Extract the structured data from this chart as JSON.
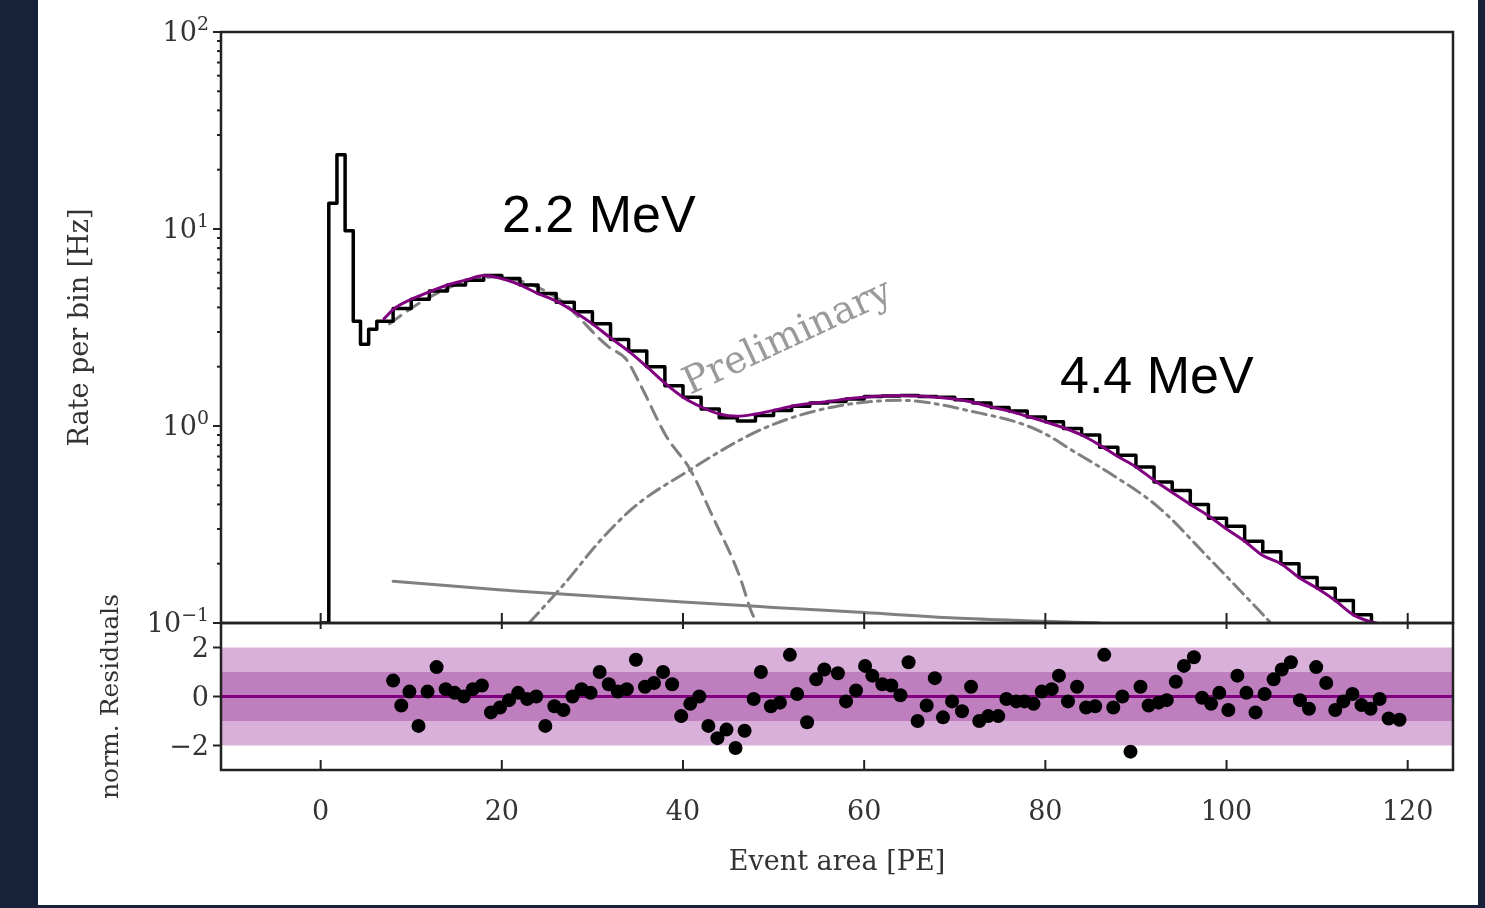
{
  "chart_data": [
    {
      "type": "line",
      "ylabel": "Rate per bin [Hz]",
      "log": "y",
      "xlim": [
        -11,
        125
      ],
      "ylim": [
        0.1,
        100
      ],
      "xticks": [
        0,
        20,
        40,
        60,
        80,
        100,
        120
      ],
      "yticks": [
        {
          "value": 0.1,
          "label": "10$^{−1}$"
        },
        {
          "value": 0.2,
          "label": null
        },
        {
          "value": 0.3,
          "label": null
        },
        {
          "value": 0.4,
          "label": null
        },
        {
          "value": 0.5,
          "label": null
        },
        {
          "value": 0.6,
          "label": null
        },
        {
          "value": 0.7,
          "label": null
        },
        {
          "value": 0.8,
          "label": null
        },
        {
          "value": 0.9,
          "label": null
        },
        {
          "value": 1,
          "label": "10$^{0}$"
        },
        {
          "value": 2,
          "label": null
        },
        {
          "value": 3,
          "label": null
        },
        {
          "value": 4,
          "label": null
        },
        {
          "value": 5,
          "label": null
        },
        {
          "value": 6,
          "label": null
        },
        {
          "value": 7,
          "label": null
        },
        {
          "value": 8,
          "label": null
        },
        {
          "value": 9,
          "label": null
        },
        {
          "value": 10,
          "label": "10$^{1}$"
        },
        {
          "value": 20,
          "label": null
        },
        {
          "value": 30,
          "label": null
        },
        {
          "value": 40,
          "label": null
        },
        {
          "value": 50,
          "label": null
        },
        {
          "value": 60,
          "label": null
        },
        {
          "value": 70,
          "label": null
        },
        {
          "value": 80,
          "label": null
        },
        {
          "value": 90,
          "label": null
        },
        {
          "value": 100,
          "label": "10$^{2}$"
        }
      ],
      "tick_labels": "y",
      "annotations": [
        "2.2 MeV",
        "4.4 MeV",
        "Preliminary"
      ],
      "series": [
        {
          "color": "#808080",
          "x": [
            8,
            20,
            30,
            40,
            50,
            60,
            70,
            80,
            86
          ],
          "values": [
            0.163,
            0.147,
            0.137,
            0.128,
            0.12,
            0.113,
            0.106,
            0.102,
            0.1
          ]
        },
        {
          "color": "#808080",
          "line_style": "dashed",
          "x": [
            7.6,
            12,
            19,
            26,
            31.9,
            33.8,
            35.2,
            38.2,
            40.8,
            43.3,
            46.3,
            47.7,
            48.2
          ],
          "values": [
            3.3,
            4.5,
            5.7,
            4.5,
            2.5,
            2.16,
            1.65,
            0.88,
            0.6,
            0.345,
            0.17,
            0.11,
            0.1
          ]
        },
        {
          "color": "#808080",
          "line_style": "dashdot",
          "x": [
            23,
            27,
            30.8,
            33.8,
            40.8,
            49.3,
            56.6,
            64,
            71.4,
            80.6,
            82.4,
            87,
            92.4,
            98.2,
            104.9
          ],
          "values": [
            0.1,
            0.16,
            0.26,
            0.36,
            0.6,
            0.99,
            1.25,
            1.35,
            1.2,
            0.88,
            0.78,
            0.58,
            0.39,
            0.21,
            0.1
          ]
        },
        {
          "type": "step",
          "color": "#000000",
          "x": [
            0,
            0.9,
            1.8,
            2.7,
            3.6,
            4.4,
            5.3,
            6.2,
            8,
            10,
            12,
            14,
            16,
            18,
            20,
            22,
            24,
            26,
            28,
            30,
            32,
            34,
            36,
            38,
            40,
            42,
            44,
            46,
            48,
            50,
            52,
            54,
            56,
            58,
            60,
            62,
            64,
            66,
            68,
            70,
            72,
            74,
            76,
            78,
            80,
            82,
            84,
            86,
            88,
            90,
            92,
            94,
            96,
            98,
            100,
            102,
            104,
            106,
            108,
            110,
            112,
            114,
            116
          ],
          "values": [
            0.1,
            13.5,
            23.8,
            9.8,
            3.4,
            2.6,
            3.1,
            3.4,
            3.95,
            4.4,
            4.85,
            5.2,
            5.5,
            5.8,
            5.6,
            5.2,
            4.7,
            4.25,
            3.8,
            3.3,
            2.75,
            2.4,
            2.0,
            1.6,
            1.4,
            1.22,
            1.1,
            1.06,
            1.13,
            1.2,
            1.26,
            1.31,
            1.33,
            1.37,
            1.41,
            1.42,
            1.43,
            1.41,
            1.4,
            1.36,
            1.31,
            1.24,
            1.19,
            1.11,
            1.05,
            0.97,
            0.9,
            0.78,
            0.71,
            0.62,
            0.52,
            0.47,
            0.4,
            0.34,
            0.31,
            0.26,
            0.23,
            0.2,
            0.17,
            0.15,
            0.13,
            0.11,
            0.1
          ]
        },
        {
          "color": "#800080",
          "x": [
            7,
            8,
            10,
            12,
            14,
            16,
            18,
            20,
            22,
            24,
            26,
            28,
            30,
            32,
            34,
            36,
            38,
            40,
            42,
            44,
            46,
            48,
            50,
            52,
            54,
            56,
            58,
            60,
            62,
            64,
            66,
            68,
            70,
            72,
            74,
            76,
            78,
            80,
            82,
            84,
            86,
            88,
            90,
            92,
            94,
            96,
            98,
            100,
            102,
            104,
            106,
            108,
            110,
            112,
            114,
            116.5
          ],
          "values": [
            3.5,
            3.9,
            4.4,
            4.8,
            5.2,
            5.5,
            5.8,
            5.6,
            5.2,
            4.7,
            4.3,
            3.8,
            3.3,
            2.8,
            2.4,
            2.0,
            1.65,
            1.4,
            1.25,
            1.15,
            1.12,
            1.15,
            1.2,
            1.26,
            1.3,
            1.33,
            1.37,
            1.4,
            1.42,
            1.43,
            1.42,
            1.4,
            1.37,
            1.32,
            1.25,
            1.19,
            1.12,
            1.05,
            0.98,
            0.9,
            0.8,
            0.7,
            0.62,
            0.53,
            0.46,
            0.4,
            0.35,
            0.3,
            0.26,
            0.22,
            0.2,
            0.17,
            0.15,
            0.13,
            0.11,
            0.1
          ]
        }
      ]
    },
    {
      "type": "scatter",
      "xlabel": "Event area [PE]",
      "ylabel": "norm. Residuals",
      "xlim": [
        -11,
        125
      ],
      "ylim": [
        -3,
        3
      ],
      "xticks": [
        0,
        20,
        40,
        60,
        80,
        100,
        120
      ],
      "yticks": [
        {
          "value": -2,
          "label": "−2"
        },
        0,
        2
      ],
      "marker": "circle",
      "bands": [
        {
          "axis": "y",
          "from": -2,
          "to": 2,
          "color": "#d9b0d9"
        },
        {
          "axis": "y",
          "from": -1,
          "to": 1,
          "color": "#bf7fbf"
        }
      ],
      "ref_lines": [
        {
          "axis": "y",
          "value": 0,
          "color": "#800080"
        }
      ],
      "series": [
        {
          "color": "#000000",
          "x": [
            8,
            8.9,
            9.8,
            10.8,
            11.8,
            12.8,
            13.8,
            14.8,
            15.8,
            16.8,
            17.8,
            18.8,
            19.8,
            20.8,
            21.8,
            22.8,
            23.8,
            24.8,
            25.8,
            26.8,
            27.8,
            28.8,
            29.8,
            30.8,
            31.8,
            32.8,
            33.8,
            34.8,
            35.8,
            36.8,
            37.8,
            38.8,
            39.8,
            40.8,
            41.8,
            42.8,
            43.8,
            44.8,
            45.8,
            46.8,
            47.8,
            48.6,
            49.7,
            50.7,
            51.8,
            52.6,
            53.7,
            54.7,
            55.6,
            57.1,
            58,
            59.1,
            60.1,
            60.9,
            62,
            63,
            64,
            64.9,
            65.9,
            66.9,
            67.8,
            68.7,
            69.7,
            70.8,
            71.8,
            72.7,
            73.7,
            74.8,
            75.7,
            76.8,
            77.7,
            78.7,
            79.6,
            80.7,
            81.5,
            82.5,
            83.5,
            84.5,
            85.5,
            86.5,
            87.5,
            88.5,
            89.4,
            90.5,
            91.4,
            92.5,
            93.4,
            94.4,
            95.3,
            96.4,
            97.3,
            98.3,
            99.2,
            100.2,
            101.2,
            102.2,
            103.2,
            104.2,
            105.2,
            106.1,
            107.1,
            108.1,
            109.1,
            109.9,
            111,
            112,
            112.9,
            113.9,
            114.9,
            115.9,
            116.9,
            117.9,
            119.1
          ],
          "values": [
            0.65,
            -0.37,
            0.2,
            -1.2,
            0.2,
            1.2,
            0.3,
            0.15,
            0,
            0.3,
            0.45,
            -0.65,
            -0.45,
            -0.15,
            0.15,
            -0.1,
            0,
            -1.2,
            -0.4,
            -0.55,
            0,
            0.3,
            0.15,
            1.0,
            0.5,
            0.2,
            0.3,
            1.5,
            0.4,
            0.55,
            1.0,
            0.5,
            -0.8,
            -0.3,
            0,
            -1.2,
            -1.7,
            -1.35,
            -2.1,
            -1.4,
            -0.1,
            1.0,
            -0.4,
            -0.25,
            1.7,
            0.1,
            -1.05,
            0.7,
            1.1,
            0.95,
            -0.2,
            0.25,
            1.25,
            0.85,
            0.5,
            0.45,
            0.05,
            1.4,
            -1.0,
            -0.37,
            0.75,
            -0.85,
            -0.2,
            -0.6,
            0.4,
            -1.0,
            -0.8,
            -0.8,
            -0.1,
            -0.2,
            -0.2,
            -0.3,
            0.2,
            0.3,
            0.85,
            -0.2,
            0.4,
            -0.45,
            -0.4,
            1.7,
            -0.45,
            0,
            -2.25,
            0.4,
            -0.37,
            -0.25,
            -0.15,
            0.6,
            1.25,
            1.6,
            -0.05,
            -0.3,
            0.15,
            -0.55,
            0.85,
            0.15,
            -0.65,
            0.1,
            0.7,
            1.1,
            1.4,
            -0.15,
            -0.5,
            1.2,
            0.55,
            -0.55,
            -0.2,
            0.1,
            -0.35,
            -0.5,
            -0.1,
            -0.9,
            -0.95
          ]
        }
      ]
    }
  ]
}
